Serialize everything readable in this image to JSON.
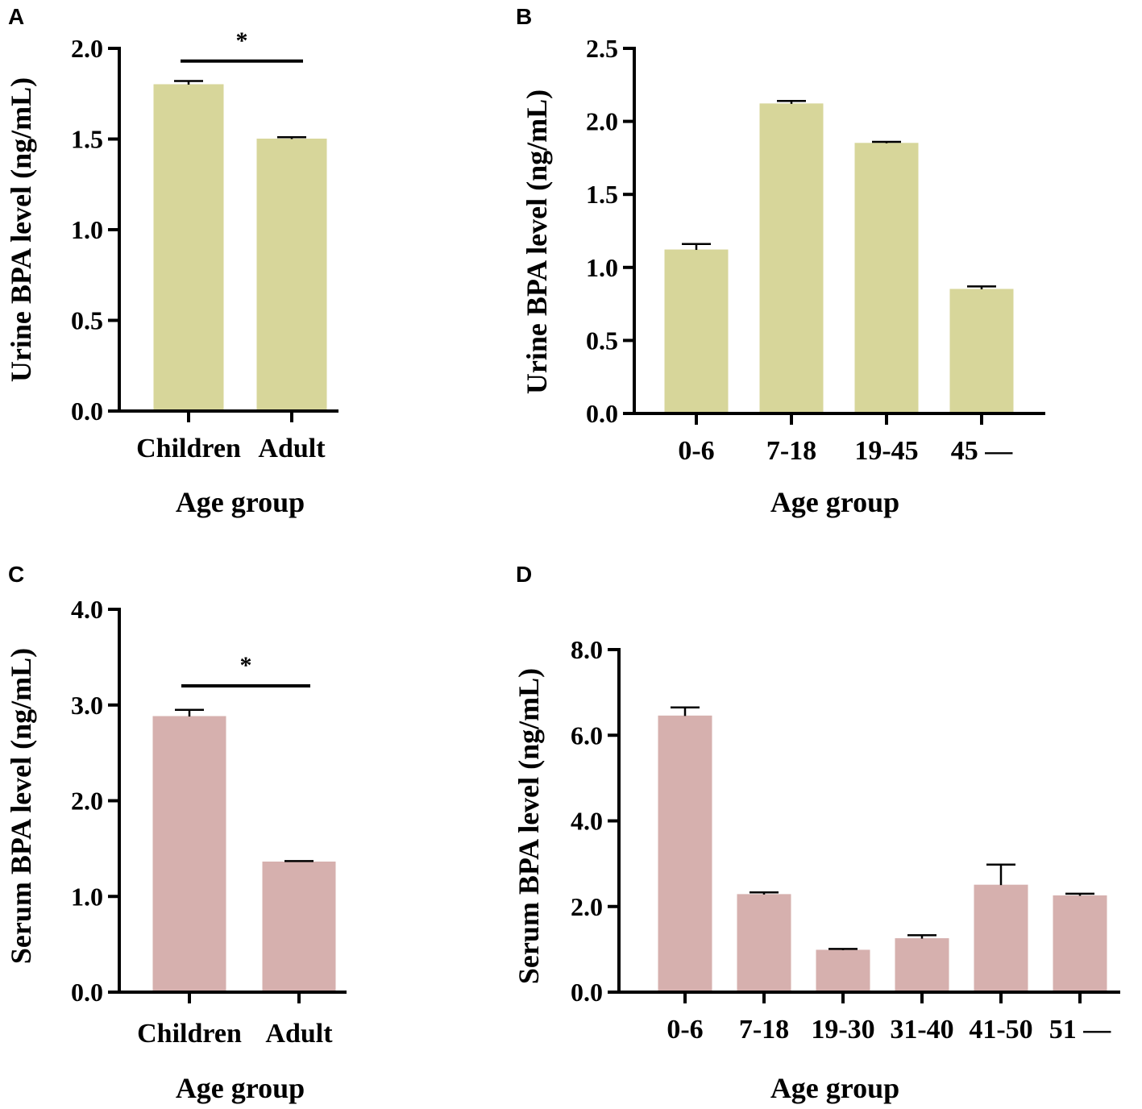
{
  "chart_data": [
    {
      "id": "A",
      "type": "bar",
      "panel_label": "A",
      "categories": [
        "Children",
        "Adult"
      ],
      "values": [
        1.8,
        1.5
      ],
      "errors": [
        0.02,
        0.01
      ],
      "ylabel": "Urine BPA level (ng/mL)",
      "xlabel": "Age group",
      "ylim": [
        0,
        2.0
      ],
      "yticks": [
        0.0,
        0.5,
        1.0,
        1.5,
        2.0
      ],
      "ytick_labels": [
        "0.0",
        "0.5",
        "1.0",
        "1.5",
        "2.0"
      ],
      "bar_color": "#d7d69a",
      "significance": {
        "from": 0,
        "to": 1,
        "label": "*",
        "level": 1.93
      }
    },
    {
      "id": "B",
      "type": "bar",
      "panel_label": "B",
      "categories": [
        "0-6",
        "7-18",
        "19-45",
        "45 —"
      ],
      "values": [
        1.12,
        2.12,
        1.85,
        0.85
      ],
      "errors": [
        0.04,
        0.02,
        0.01,
        0.02
      ],
      "ylabel": "Urine BPA level (ng/mL)",
      "xlabel": "Age group",
      "ylim": [
        0,
        2.5
      ],
      "yticks": [
        0.0,
        0.5,
        1.0,
        1.5,
        2.0,
        2.5
      ],
      "ytick_labels": [
        "0.0",
        "0.5",
        "1.0",
        "1.5",
        "2.0",
        "2.5"
      ],
      "bar_color": "#d7d69a"
    },
    {
      "id": "C",
      "type": "bar",
      "panel_label": "C",
      "categories": [
        "Children",
        "Adult"
      ],
      "values": [
        2.88,
        1.36
      ],
      "errors": [
        0.07,
        0.01
      ],
      "ylabel": "Serum BPA level (ng/mL)",
      "xlabel": "Age group",
      "ylim": [
        0,
        4.0
      ],
      "yticks": [
        0.0,
        1.0,
        2.0,
        3.0,
        4.0
      ],
      "ytick_labels": [
        "0.0",
        "1.0",
        "2.0",
        "3.0",
        "4.0"
      ],
      "bar_color": "#d6b0ae",
      "significance": {
        "from": 0,
        "to": 1,
        "label": "*",
        "level": 3.2
      }
    },
    {
      "id": "D",
      "type": "bar",
      "panel_label": "D",
      "categories": [
        "0-6",
        "7-18",
        "19-30",
        "31-40",
        "41-50",
        "51 —"
      ],
      "values": [
        6.45,
        2.28,
        0.98,
        1.25,
        2.5,
        2.25
      ],
      "errors": [
        0.2,
        0.05,
        0.03,
        0.08,
        0.48,
        0.05
      ],
      "ylabel": "Serum BPA level (ng/mL)",
      "xlabel": "Age group",
      "ylim": [
        0,
        8.0
      ],
      "yticks": [
        0.0,
        2.0,
        4.0,
        6.0,
        8.0
      ],
      "ytick_labels": [
        "0.0",
        "2.0",
        "4.0",
        "6.0",
        "8.0"
      ],
      "bar_color": "#d6b0ae"
    }
  ]
}
